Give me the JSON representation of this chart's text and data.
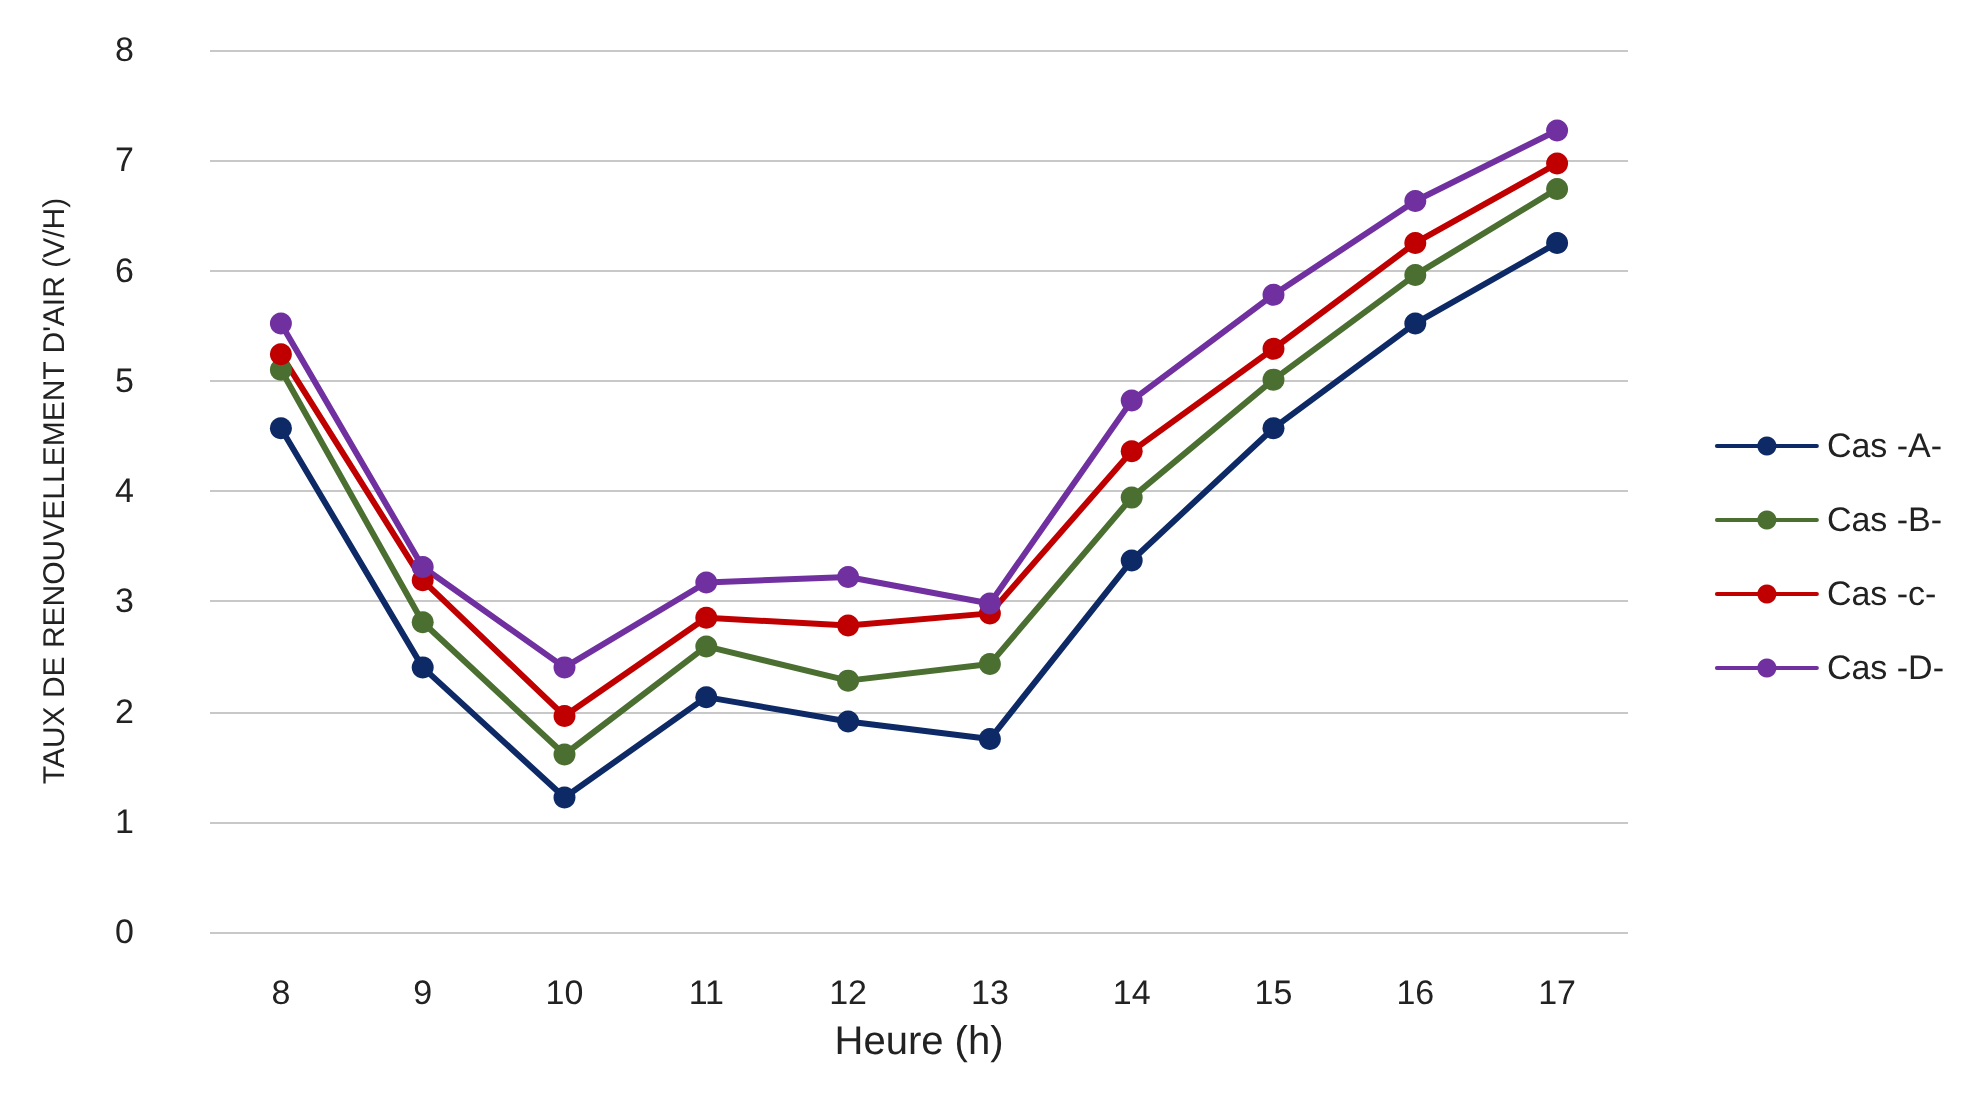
{
  "chart_data": {
    "type": "line",
    "xlabel": "Heure (h)",
    "ylabel": "TAUX DE RENOUVELLEMENT D'AIR (V/H)",
    "categories": [
      "8",
      "9",
      "10",
      "11",
      "12",
      "13",
      "14",
      "15",
      "16",
      "17"
    ],
    "series": [
      {
        "name": "Cas -A-",
        "color": "#0d2a66",
        "values": [
          4.57,
          2.4,
          1.22,
          2.13,
          1.91,
          1.75,
          3.37,
          4.57,
          5.52,
          6.25
        ]
      },
      {
        "name": "Cas -B-",
        "color": "#4b6f31",
        "values": [
          5.1,
          2.81,
          1.61,
          2.59,
          2.28,
          2.43,
          3.94,
          5.01,
          5.96,
          6.74
        ]
      },
      {
        "name": "Cas -c-",
        "color": "#c00000",
        "values": [
          5.24,
          3.19,
          1.96,
          2.85,
          2.78,
          2.89,
          4.36,
          5.29,
          6.25,
          6.97
        ]
      },
      {
        "name": "Cas -D-",
        "color": "#7030a0",
        "values": [
          5.52,
          3.31,
          2.4,
          3.17,
          3.22,
          2.98,
          4.82,
          5.78,
          6.63,
          7.27
        ]
      }
    ],
    "ylim": [
      0,
      8
    ],
    "yticks": [
      0,
      1,
      2,
      3,
      4,
      5,
      6,
      7,
      8
    ],
    "grid": "y",
    "legend": "right",
    "marker": "circle",
    "line_style": "solid"
  }
}
